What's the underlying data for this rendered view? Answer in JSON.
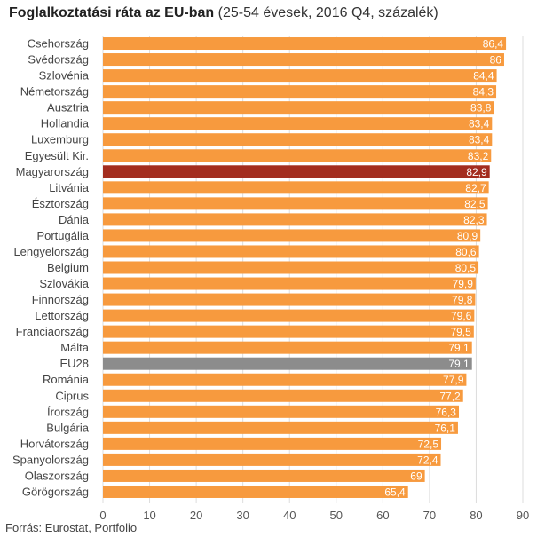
{
  "title_bold": "Foglalkoztatási ráta az EU-ban",
  "title_rest": " (25-54 évesek, 2016 Q4, százalék)",
  "source": "Forrás: Eurostat, Portfolio",
  "colors": {
    "default": "#f79a3e",
    "highlight": "#a32d1f",
    "eu": "#8c8c8c",
    "grid": "#dddddd"
  },
  "chart_data": {
    "type": "bar",
    "orientation": "horizontal",
    "title": "Foglalkoztatási ráta az EU-ban (25-54 évesek, 2016 Q4, százalék)",
    "xlim": [
      0,
      90
    ],
    "xticks": [
      0,
      10,
      20,
      30,
      40,
      50,
      60,
      70,
      80,
      90
    ],
    "categories": [
      "Csehország",
      "Svédország",
      "Szlovénia",
      "Németország",
      "Ausztria",
      "Hollandia",
      "Luxemburg",
      "Egyesült Kir.",
      "Magyarország",
      "Litvánia",
      "Észtország",
      "Dánia",
      "Portugália",
      "Lengyelország",
      "Belgium",
      "Szlovákia",
      "Finnország",
      "Lettország",
      "Franciaország",
      "Málta",
      "EU28",
      "Románia",
      "Ciprus",
      "Írország",
      "Bulgária",
      "Horvátország",
      "Spanyolország",
      "Olaszország",
      "Görögország"
    ],
    "values": [
      86.4,
      86,
      84.4,
      84.3,
      83.8,
      83.4,
      83.4,
      83.2,
      82.9,
      82.7,
      82.5,
      82.3,
      80.9,
      80.6,
      80.5,
      79.9,
      79.8,
      79.6,
      79.5,
      79.1,
      79.1,
      77.9,
      77.2,
      76.3,
      76.1,
      72.5,
      72.4,
      69,
      65.4
    ],
    "value_labels": [
      "86,4",
      "86",
      "84,4",
      "84,3",
      "83,8",
      "83,4",
      "83,4",
      "83,2",
      "82,9",
      "82,7",
      "82,5",
      "82,3",
      "80,9",
      "80,6",
      "80,5",
      "79,9",
      "79,8",
      "79,6",
      "79,5",
      "79,1",
      "79,1",
      "77,9",
      "77,2",
      "76,3",
      "76,1",
      "72,5",
      "72,4",
      "69",
      "65,4"
    ],
    "highlights": {
      "Magyarország": "highlight",
      "EU28": "eu"
    }
  }
}
